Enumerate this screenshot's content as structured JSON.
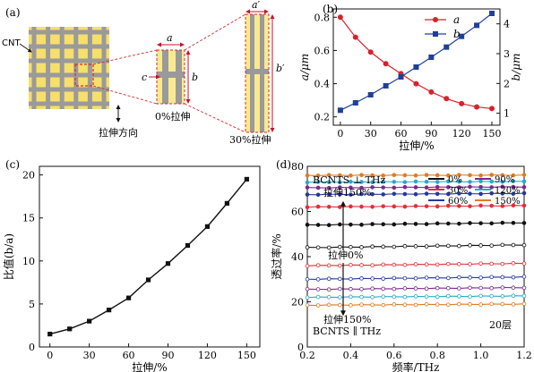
{
  "panel_a": {
    "label": "(a)",
    "cnt_label": "CNT",
    "dim_a": "a",
    "dim_b": "b",
    "dim_c": "c",
    "dim_a_prime": "a′",
    "dim_b_prime": "b′",
    "caption_0": "0%拉伸",
    "caption_30": "30%拉伸",
    "direction_label": "拉伸方向",
    "colors": {
      "grid_bg": "#f6df6b",
      "bar": "#9a9a9a",
      "cell": "#fbe98f",
      "dash": "#d42c2c",
      "arrow": "#c8102e"
    }
  },
  "chart_data": [
    {
      "panel": "(b)",
      "type": "line",
      "x": [
        0,
        15,
        30,
        45,
        60,
        75,
        90,
        105,
        120,
        135,
        150
      ],
      "series": [
        {
          "name": "a",
          "color": "#d8222a",
          "marker": "circle",
          "axis": "left",
          "values": [
            0.8,
            0.68,
            0.59,
            0.52,
            0.46,
            0.4,
            0.35,
            0.31,
            0.28,
            0.26,
            0.25
          ]
        },
        {
          "name": "b",
          "color": "#1f3f9a",
          "marker": "square",
          "axis": "right",
          "values": [
            1.1,
            1.35,
            1.62,
            1.92,
            2.22,
            2.55,
            2.88,
            3.22,
            3.58,
            3.95,
            4.35
          ]
        }
      ],
      "xlabel": "拉伸/%",
      "ylabel": "a/μm",
      "y2label": "b/μm",
      "xlim": [
        -7,
        158
      ],
      "ylim": [
        0.15,
        0.85
      ],
      "y2lim": [
        0.6,
        4.5
      ],
      "xticks": [
        0,
        30,
        60,
        90,
        120,
        150
      ],
      "yticks": [
        0.2,
        0.4,
        0.6,
        0.8
      ],
      "y2ticks": [
        1,
        2,
        3,
        4
      ],
      "legend": "top-right"
    },
    {
      "panel": "(c)",
      "type": "line",
      "x": [
        0,
        15,
        30,
        45,
        60,
        75,
        90,
        105,
        120,
        135,
        150
      ],
      "series": [
        {
          "color": "#111111",
          "marker": "square",
          "values": [
            1.5,
            2.1,
            3.0,
            4.3,
            5.7,
            7.8,
            9.7,
            11.8,
            14.0,
            16.7,
            19.5
          ]
        }
      ],
      "xlabel": "拉伸/%",
      "ylabel": "比值(b/a)",
      "xlim": [
        -8,
        160
      ],
      "ylim": [
        0,
        21
      ],
      "xticks": [
        0,
        30,
        60,
        90,
        120,
        150
      ],
      "yticks": [
        0,
        5,
        10,
        15,
        20
      ],
      "grid": false
    },
    {
      "panel": "(d)",
      "type": "line",
      "xlabel": "频率/THz",
      "ylabel": "透过率/%",
      "xlim": [
        0.2,
        1.2
      ],
      "ylim": [
        0,
        80
      ],
      "xticks": [
        0.2,
        0.4,
        0.6,
        0.8,
        1.0,
        1.2
      ],
      "yticks": [
        0,
        20,
        40,
        60,
        80
      ],
      "x": [
        0.2,
        0.25,
        0.3,
        0.35,
        0.4,
        0.45,
        0.5,
        0.55,
        0.6,
        0.65,
        0.7,
        0.75,
        0.8,
        0.85,
        0.9,
        0.95,
        1.0,
        1.05,
        1.1,
        1.15,
        1.2
      ],
      "series": [
        {
          "name": "0%",
          "color": "#111111",
          "filled": true,
          "level": 54,
          "slope": 1.0
        },
        {
          "name": "30%",
          "color": "#e0303a",
          "filled": true,
          "level": 62,
          "slope": 0.6
        },
        {
          "name": "60%",
          "color": "#2438a0",
          "filled": true,
          "level": 67.5,
          "slope": 0.5
        },
        {
          "name": "90%",
          "color": "#7b2a8e",
          "filled": true,
          "level": 70.5,
          "slope": 0.4
        },
        {
          "name": "120%",
          "color": "#2aa9c9",
          "filled": true,
          "level": 73,
          "slope": 0.3
        },
        {
          "name": "150%",
          "color": "#e07b22",
          "filled": true,
          "level": 76,
          "slope": 0.1
        },
        {
          "name": "0%",
          "color": "#111111",
          "filled": false,
          "level": 44,
          "slope": 1.2
        },
        {
          "name": "30%",
          "color": "#e0303a",
          "filled": false,
          "level": 36,
          "slope": 1.0
        },
        {
          "name": "60%",
          "color": "#2438a0",
          "filled": false,
          "level": 30,
          "slope": 1.0
        },
        {
          "name": "90%",
          "color": "#7b2a8e",
          "filled": false,
          "level": 25.5,
          "slope": 0.8
        },
        {
          "name": "120%",
          "color": "#2aa9c9",
          "filled": false,
          "level": 22,
          "slope": 0.6
        },
        {
          "name": "150%",
          "color": "#e07b22",
          "filled": false,
          "level": 18.5,
          "slope": 0.5
        }
      ],
      "annotations": {
        "top_label": "BCNTS ⊥ THz",
        "top_stretch": "拉伸150%",
        "mid_stretch": "拉伸0%",
        "bottom_stretch": "拉伸150%",
        "bottom_label": "BCNTS ∥ THz",
        "layers": "20层"
      },
      "legend": "top-right"
    }
  ]
}
